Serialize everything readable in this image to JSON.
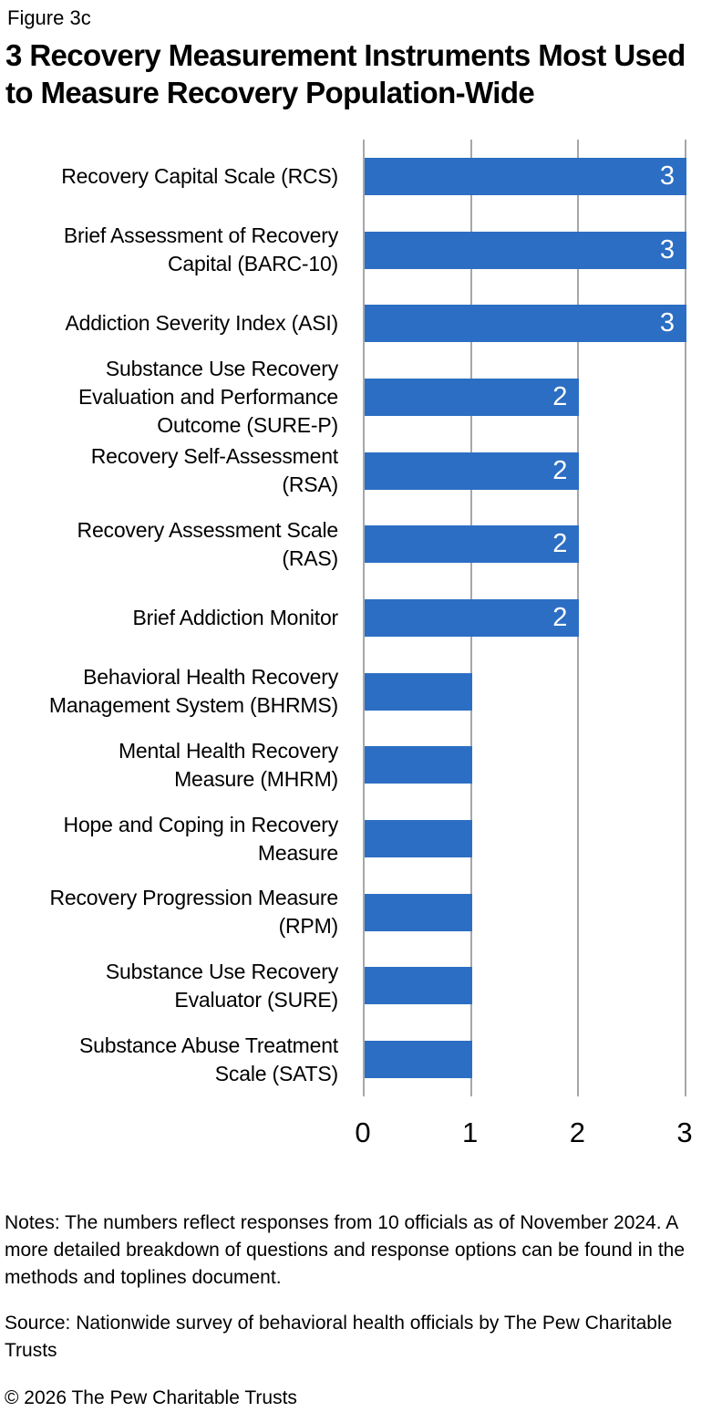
{
  "figure_label": "Figure 3c",
  "title": "3 Recovery Measurement Instruments Most Used to Measure Recovery Population-Wide",
  "chart_data": {
    "type": "bar",
    "orientation": "horizontal",
    "title": "3 Recovery Measurement Instruments Most Used to Measure Recovery Population-Wide",
    "categories": [
      "Recovery Capital Scale (RCS)",
      "Brief Assessment of Recovery Capital (BARC-10)",
      "Addiction Severity Index (ASI)",
      "Substance Use Recovery Evaluation and Performance Outcome (SURE-P)",
      "Recovery Self-Assessment (RSA)",
      "Recovery Assessment Scale (RAS)",
      "Brief Addiction Monitor",
      "Behavioral Health Recovery Management System (BHRMS)",
      "Mental Health Recovery Measure (MHRM)",
      "Hope and Coping in Recovery Measure",
      "Recovery Progression Measure (RPM)",
      "Substance Use Recovery Evaluator (SURE)",
      "Substance Abuse Treatment Scale (SATS)"
    ],
    "categories_wrapped": [
      "Recovery Capital Scale (RCS)",
      "Brief Assessment of Recovery\nCapital (BARC-10)",
      "Addiction Severity Index (ASI)",
      "Substance Use Recovery\nEvaluation and Performance\nOutcome (SURE-P)",
      "Recovery Self-Assessment\n(RSA)",
      "Recovery Assessment Scale\n(RAS)",
      "Brief Addiction Monitor",
      "Behavioral Health Recovery\nManagement System (BHRMS)",
      "Mental Health Recovery\nMeasure (MHRM)",
      "Hope and Coping in Recovery\nMeasure",
      "Recovery Progression Measure\n(RPM)",
      "Substance Use Recovery\nEvaluator (SURE)",
      "Substance Abuse Treatment\nScale (SATS)"
    ],
    "values": [
      3,
      3,
      3,
      2,
      2,
      2,
      2,
      1,
      1,
      1,
      1,
      1,
      1
    ],
    "value_labels": [
      "3",
      "3",
      "3",
      "2",
      "2",
      "2",
      "2",
      "",
      "",
      "",
      "",
      "",
      ""
    ],
    "xlabel": "",
    "ylabel": "",
    "xlim": [
      0,
      3
    ],
    "xticks": [
      "0",
      "1",
      "2",
      "3"
    ],
    "grid": true,
    "legend": false,
    "bar_color": "#2c6ec3",
    "gridline_color": "#a6a7aa",
    "value_label_color": "#ffffff"
  },
  "notes": "Notes: The numbers reflect responses from 10 officials as of November 2024. A more detailed breakdown of questions and response options can be found in the methods and toplines document.",
  "source": "Source: Nationwide survey of behavioral health officials by The Pew Charitable Trusts",
  "copyright": "© 2026 The Pew Charitable Trusts"
}
